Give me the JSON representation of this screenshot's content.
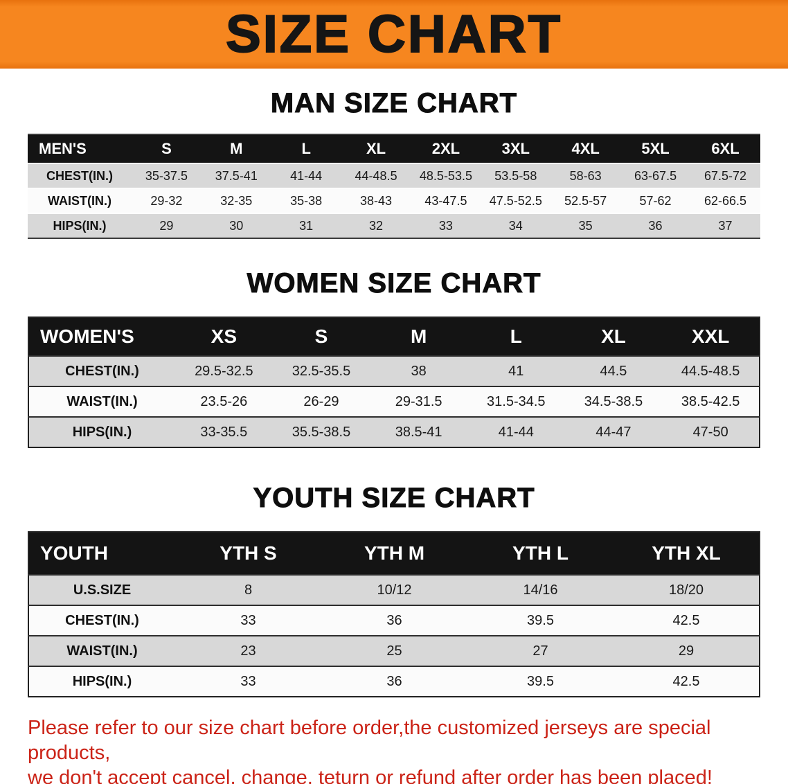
{
  "banner": {
    "title": "SIZE CHART"
  },
  "colors": {
    "banner_orange": "#F6861F",
    "table_header_black": "#141414",
    "row_gray": "#D8D8D8",
    "row_white": "#FBFBFB",
    "disclaimer_red": "#CB2317"
  },
  "chart_data": [
    {
      "type": "table",
      "title": "MAN SIZE CHART",
      "columns": [
        "MEN'S",
        "S",
        "M",
        "L",
        "XL",
        "2XL",
        "3XL",
        "4XL",
        "5XL",
        "6XL"
      ],
      "rows": [
        [
          "CHEST(IN.)",
          "35-37.5",
          "37.5-41",
          "41-44",
          "44-48.5",
          "48.5-53.5",
          "53.5-58",
          "58-63",
          "63-67.5",
          "67.5-72"
        ],
        [
          "WAIST(IN.)",
          "29-32",
          "32-35",
          "35-38",
          "38-43",
          "43-47.5",
          "47.5-52.5",
          "52.5-57",
          "57-62",
          "62-66.5"
        ],
        [
          "HIPS(IN.)",
          "29",
          "30",
          "31",
          "32",
          "33",
          "34",
          "35",
          "36",
          "37"
        ]
      ]
    },
    {
      "type": "table",
      "title": "WOMEN SIZE CHART",
      "columns": [
        "WOMEN'S",
        "XS",
        "S",
        "M",
        "L",
        "XL",
        "XXL"
      ],
      "rows": [
        [
          "CHEST(IN.)",
          "29.5-32.5",
          "32.5-35.5",
          "38",
          "41",
          "44.5",
          "44.5-48.5"
        ],
        [
          "WAIST(IN.)",
          "23.5-26",
          "26-29",
          "29-31.5",
          "31.5-34.5",
          "34.5-38.5",
          "38.5-42.5"
        ],
        [
          "HIPS(IN.)",
          "33-35.5",
          "35.5-38.5",
          "38.5-41",
          "41-44",
          "44-47",
          "47-50"
        ]
      ]
    },
    {
      "type": "table",
      "title": "YOUTH SIZE CHART",
      "columns": [
        "YOUTH",
        "YTH S",
        "YTH M",
        "YTH L",
        "YTH XL"
      ],
      "rows": [
        [
          "U.S.SIZE",
          "8",
          "10/12",
          "14/16",
          "18/20"
        ],
        [
          "CHEST(IN.)",
          "33",
          "36",
          "39.5",
          "42.5"
        ],
        [
          "WAIST(IN.)",
          "23",
          "25",
          "27",
          "29"
        ],
        [
          "HIPS(IN.)",
          "33",
          "36",
          "39.5",
          "42.5"
        ]
      ]
    }
  ],
  "disclaimer": {
    "line1": "Please refer to our size chart before order,the customized jerseys are special products,",
    "line2": "we don't accept cancel, change, teturn or refund after order has been placed!"
  }
}
